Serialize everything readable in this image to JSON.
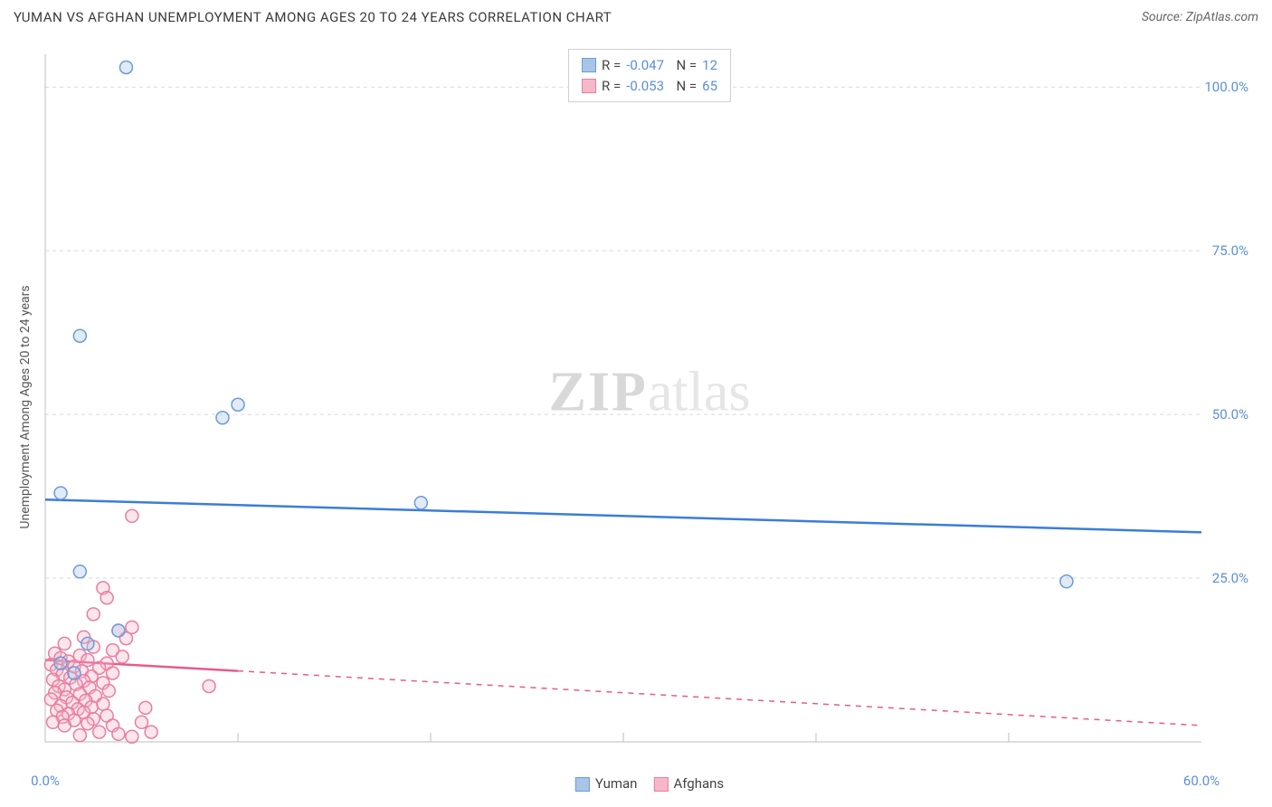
{
  "title": "YUMAN VS AFGHAN UNEMPLOYMENT AMONG AGES 20 TO 24 YEARS CORRELATION CHART",
  "source": "Source: ZipAtlas.com",
  "watermark": {
    "part1": "ZIP",
    "part2": "atlas"
  },
  "chart": {
    "type": "scatter",
    "ylabel": "Unemployment Among Ages 20 to 24 years",
    "background_color": "#ffffff",
    "grid_color": "#d9d9d9",
    "axis_color": "#bfbfbf",
    "tick_color": "#5b8fd9",
    "tick_fontsize": 15,
    "label_fontsize": 14,
    "xlim": [
      0,
      60
    ],
    "ylim": [
      0,
      105
    ],
    "ytick_step": 25,
    "yticks": [
      25,
      50,
      75,
      100
    ],
    "ytick_labels": [
      "25.0%",
      "50.0%",
      "75.0%",
      "100.0%"
    ],
    "xticks": [
      0,
      10,
      20,
      30,
      40,
      50,
      60
    ],
    "xtick_labels": [
      "0.0%",
      "",
      "",
      "",
      "",
      "",
      "60.0%"
    ],
    "xtick_mark_positions": [
      0,
      10,
      20,
      30,
      40,
      50,
      60
    ],
    "marker_radius": 7,
    "marker_stroke_width": 1.5,
    "marker_fill_opacity": 0.35,
    "line_width": 2.5,
    "series": [
      {
        "name": "Yuman",
        "color_fill": "#a8c5e8",
        "color_stroke": "#6a9bd8",
        "line_color": "#3b7dd8",
        "line_style": "solid",
        "line_start": [
          0,
          37
        ],
        "line_end": [
          60,
          32
        ],
        "r_value": "-0.047",
        "n_value": "12",
        "points": [
          [
            4.2,
            103.0
          ],
          [
            1.8,
            62.0
          ],
          [
            10.0,
            51.5
          ],
          [
            9.2,
            49.5
          ],
          [
            0.8,
            38.0
          ],
          [
            19.5,
            36.5
          ],
          [
            1.8,
            26.0
          ],
          [
            53.0,
            24.5
          ],
          [
            3.8,
            17.0
          ],
          [
            2.2,
            15.0
          ],
          [
            0.8,
            12.0
          ],
          [
            1.5,
            10.5
          ]
        ]
      },
      {
        "name": "Afghans",
        "color_fill": "#f5b8c9",
        "color_stroke": "#e87ea0",
        "line_color": "#e85a8a",
        "line_style": "dashed",
        "line_start": [
          0,
          12.5
        ],
        "line_end": [
          60,
          2.5
        ],
        "line_solid_until": 10,
        "r_value": "-0.053",
        "n_value": "65",
        "points": [
          [
            4.5,
            34.5
          ],
          [
            3.0,
            23.5
          ],
          [
            3.2,
            22.0
          ],
          [
            2.5,
            19.5
          ],
          [
            4.5,
            17.5
          ],
          [
            3.8,
            17.0
          ],
          [
            2.0,
            16.0
          ],
          [
            4.2,
            15.8
          ],
          [
            1.0,
            15.0
          ],
          [
            2.5,
            14.5
          ],
          [
            3.5,
            14.0
          ],
          [
            0.5,
            13.5
          ],
          [
            1.8,
            13.2
          ],
          [
            4.0,
            13.0
          ],
          [
            0.8,
            12.8
          ],
          [
            2.2,
            12.5
          ],
          [
            1.2,
            12.3
          ],
          [
            3.2,
            12.0
          ],
          [
            0.3,
            11.8
          ],
          [
            1.5,
            11.5
          ],
          [
            2.8,
            11.3
          ],
          [
            0.6,
            11.0
          ],
          [
            1.9,
            10.8
          ],
          [
            3.5,
            10.5
          ],
          [
            0.9,
            10.3
          ],
          [
            2.4,
            10.0
          ],
          [
            1.3,
            9.8
          ],
          [
            0.4,
            9.5
          ],
          [
            2.0,
            9.3
          ],
          [
            3.0,
            9.0
          ],
          [
            1.6,
            8.8
          ],
          [
            0.7,
            8.5
          ],
          [
            2.3,
            8.3
          ],
          [
            1.0,
            8.0
          ],
          [
            3.3,
            7.8
          ],
          [
            0.5,
            7.5
          ],
          [
            1.8,
            7.3
          ],
          [
            2.6,
            7.0
          ],
          [
            8.5,
            8.5
          ],
          [
            1.1,
            6.8
          ],
          [
            0.3,
            6.5
          ],
          [
            2.1,
            6.3
          ],
          [
            1.4,
            6.0
          ],
          [
            3.0,
            5.8
          ],
          [
            0.8,
            5.5
          ],
          [
            2.4,
            5.3
          ],
          [
            1.7,
            5.0
          ],
          [
            5.2,
            5.2
          ],
          [
            0.6,
            4.8
          ],
          [
            2.0,
            4.5
          ],
          [
            1.2,
            4.3
          ],
          [
            3.2,
            4.0
          ],
          [
            0.9,
            3.8
          ],
          [
            2.5,
            3.5
          ],
          [
            1.5,
            3.3
          ],
          [
            0.4,
            3.0
          ],
          [
            5.0,
            3.0
          ],
          [
            2.2,
            2.8
          ],
          [
            1.0,
            2.5
          ],
          [
            3.5,
            2.5
          ],
          [
            2.8,
            1.5
          ],
          [
            1.8,
            1.0
          ],
          [
            3.8,
            1.2
          ],
          [
            4.5,
            0.8
          ],
          [
            5.5,
            1.5
          ]
        ]
      }
    ],
    "bottom_legend": [
      {
        "label": "Yuman",
        "fill": "#a8c5e8",
        "stroke": "#6a9bd8"
      },
      {
        "label": "Afghans",
        "fill": "#f5b8c9",
        "stroke": "#e87ea0"
      }
    ]
  }
}
